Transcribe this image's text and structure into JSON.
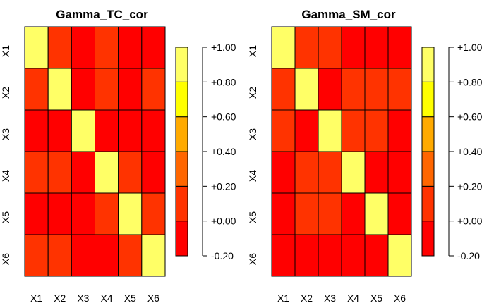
{
  "chart_data": [
    {
      "type": "heatmap",
      "title": "Gamma_TC_cor",
      "x_labels": [
        "X1",
        "X2",
        "X3",
        "X4",
        "X5",
        "X6"
      ],
      "y_labels": [
        "X1",
        "X2",
        "X3",
        "X4",
        "X5",
        "X6"
      ],
      "values": [
        [
          1.0,
          0.05,
          -0.1,
          0.05,
          -0.05,
          -0.05
        ],
        [
          0.05,
          1.0,
          -0.1,
          0.05,
          -0.05,
          0.05
        ],
        [
          -0.1,
          -0.1,
          1.0,
          -0.1,
          -0.05,
          -0.1
        ],
        [
          0.05,
          0.05,
          -0.1,
          1.0,
          0.05,
          -0.1
        ],
        [
          -0.05,
          -0.05,
          -0.05,
          0.05,
          1.0,
          0.05
        ],
        [
          0.05,
          0.05,
          -0.1,
          -0.1,
          0.05,
          1.0
        ]
      ],
      "legend": {
        "breaks": [
          -0.2,
          0.0,
          0.2,
          0.4,
          0.6,
          0.8,
          1.0
        ],
        "colors": [
          "#FF0000",
          "#FF3300",
          "#FF6600",
          "#FFAA00",
          "#FFFF00",
          "#FFFF66"
        ],
        "tick_labels": [
          "-0.20",
          "+0.00",
          "+0.20",
          "+0.40",
          "+0.60",
          "+0.80",
          "+1.00"
        ]
      }
    },
    {
      "type": "heatmap",
      "title": "Gamma_SM_cor",
      "x_labels": [
        "X1",
        "X2",
        "X3",
        "X4",
        "X5",
        "X6"
      ],
      "y_labels": [
        "X1",
        "X2",
        "X3",
        "X4",
        "X5",
        "X6"
      ],
      "values": [
        [
          1.0,
          0.05,
          0.05,
          -0.1,
          -0.05,
          -0.1
        ],
        [
          0.05,
          1.0,
          -0.1,
          0.05,
          0.05,
          0.05
        ],
        [
          0.05,
          -0.1,
          1.0,
          0.05,
          0.05,
          -0.1
        ],
        [
          -0.1,
          0.05,
          0.05,
          1.0,
          -0.1,
          -0.1
        ],
        [
          -0.1,
          0.05,
          0.05,
          -0.1,
          1.0,
          -0.1
        ],
        [
          -0.1,
          -0.1,
          -0.1,
          -0.1,
          -0.1,
          1.0
        ]
      ],
      "legend": {
        "breaks": [
          -0.2,
          0.0,
          0.2,
          0.4,
          0.6,
          0.8,
          1.0
        ],
        "colors": [
          "#FF0000",
          "#FF3300",
          "#FF6600",
          "#FFAA00",
          "#FFFF00",
          "#FFFF66"
        ],
        "tick_labels": [
          "-0.20",
          "+0.00",
          "+0.20",
          "+0.40",
          "+0.60",
          "+0.80",
          "+1.00"
        ]
      }
    }
  ]
}
